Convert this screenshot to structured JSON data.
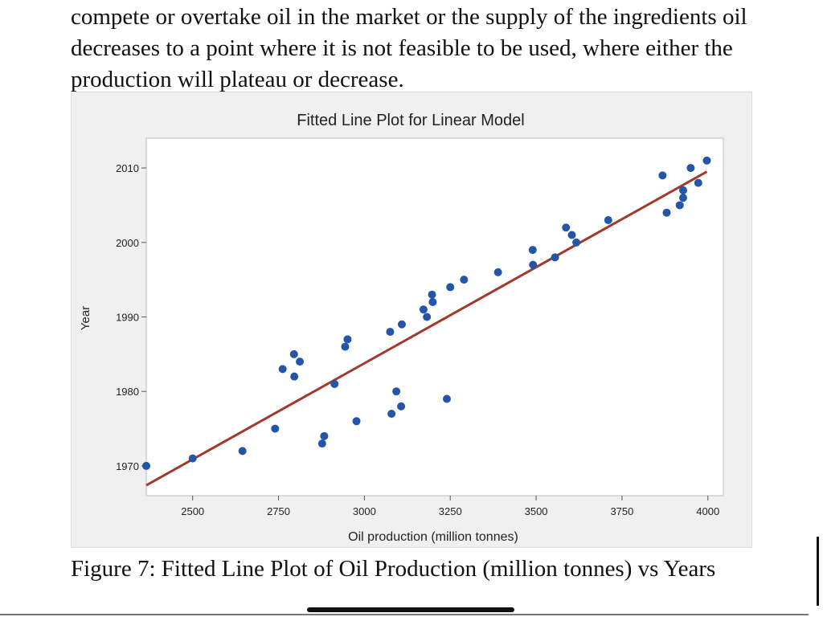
{
  "document": {
    "paragraph": "compete or overtake oil in the market or the supply of the ingredients oil decreases to a point where it is not  feasible to be used, where either the production will plateau or decrease.",
    "caption": "Figure 7: Fitted Line Plot of Oil Production (million tonnes) vs Years"
  },
  "chart_data": {
    "type": "scatter",
    "title": "Fitted Line Plot for Linear Model",
    "xlabel": "Oil production (million tonnes)",
    "ylabel": "Year",
    "xlim": [
      2365,
      4045
    ],
    "ylim": [
      1966,
      2014
    ],
    "xticks": [
      2500,
      2750,
      3000,
      3250,
      3500,
      3750,
      4000
    ],
    "yticks": [
      1970,
      1980,
      1990,
      2000,
      2010
    ],
    "grid": false,
    "marker_color": "#2356a8",
    "fit_color": "#a2392c",
    "points": [
      {
        "x": 2365,
        "y": 1970
      },
      {
        "x": 2500,
        "y": 1971
      },
      {
        "x": 2645,
        "y": 1972
      },
      {
        "x": 2740,
        "y": 1975
      },
      {
        "x": 2877,
        "y": 1973
      },
      {
        "x": 2883,
        "y": 1974
      },
      {
        "x": 2977,
        "y": 1976
      },
      {
        "x": 3079,
        "y": 1977
      },
      {
        "x": 3107,
        "y": 1978
      },
      {
        "x": 3240,
        "y": 1979
      },
      {
        "x": 3093,
        "y": 1980
      },
      {
        "x": 2913,
        "y": 1981
      },
      {
        "x": 2796,
        "y": 1982
      },
      {
        "x": 2762,
        "y": 1983
      },
      {
        "x": 2812,
        "y": 1984
      },
      {
        "x": 2795,
        "y": 1985
      },
      {
        "x": 2944,
        "y": 1986
      },
      {
        "x": 2951,
        "y": 1987
      },
      {
        "x": 3075,
        "y": 1988
      },
      {
        "x": 3109,
        "y": 1989
      },
      {
        "x": 3182,
        "y": 1990
      },
      {
        "x": 3172,
        "y": 1991
      },
      {
        "x": 3199,
        "y": 1992
      },
      {
        "x": 3197,
        "y": 1993
      },
      {
        "x": 3250,
        "y": 1994
      },
      {
        "x": 3290,
        "y": 1995
      },
      {
        "x": 3389,
        "y": 1996
      },
      {
        "x": 3491,
        "y": 1997
      },
      {
        "x": 3555,
        "y": 1998
      },
      {
        "x": 3490,
        "y": 1999
      },
      {
        "x": 3617,
        "y": 2000
      },
      {
        "x": 3604,
        "y": 2001
      },
      {
        "x": 3587,
        "y": 2002
      },
      {
        "x": 3710,
        "y": 2003
      },
      {
        "x": 3880,
        "y": 2004
      },
      {
        "x": 3918,
        "y": 2005
      },
      {
        "x": 3928,
        "y": 2006
      },
      {
        "x": 3928,
        "y": 2007
      },
      {
        "x": 3972,
        "y": 2008
      },
      {
        "x": 3868,
        "y": 2009
      },
      {
        "x": 3950,
        "y": 2010
      },
      {
        "x": 3997,
        "y": 2011
      }
    ],
    "fit_line": {
      "x": [
        2365,
        3997
      ],
      "y": [
        1967.4,
        2009.5
      ]
    }
  }
}
